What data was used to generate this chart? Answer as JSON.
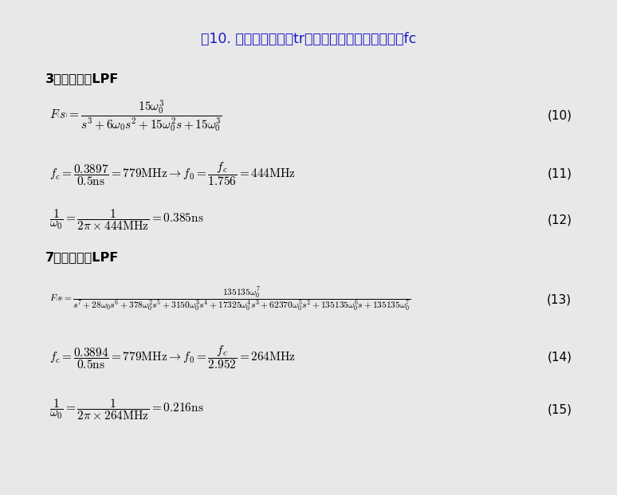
{
  "title": "図10. 立ち上がり時間trとフィルターの遮断周波数fc",
  "title_color": "#1a1ac8",
  "title_fontsize": 12.5,
  "bg_color": "#e8e8e8",
  "inner_bg_color": "#ffffff",
  "section1_label": "3次ベッセルLPF",
  "section2_label": "7次ベッセルLPF",
  "eq_numbers": [
    "(10)",
    "(11)",
    "(12)",
    "(13)",
    "(14)",
    "(15)"
  ],
  "eq_fontsize": 11,
  "section_fontsize": 11.5,
  "num_fontsize": 11
}
